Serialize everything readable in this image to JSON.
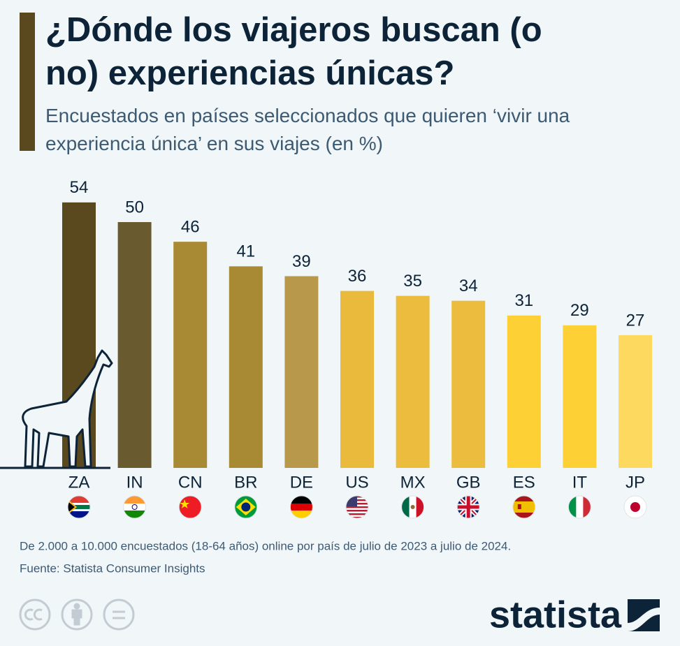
{
  "chart_data": {
    "type": "bar",
    "title": "¿Dónde los viajeros buscan (o no) experiencias únicas?",
    "subtitle": "Encuestados en países seleccionados que quieren ‘vivir una experiencia única’ en sus viajes (en %)",
    "categories": [
      "ZA",
      "IN",
      "CN",
      "BR",
      "DE",
      "US",
      "MX",
      "GB",
      "ES",
      "IT",
      "JP"
    ],
    "values": [
      54,
      50,
      46,
      41,
      39,
      36,
      35,
      34,
      31,
      29,
      27
    ],
    "colors": [
      "#5a491e",
      "#6a5a30",
      "#a88a35",
      "#a88a35",
      "#b8994b",
      "#e9ba3c",
      "#ebbc3e",
      "#ebbc3e",
      "#fdd135",
      "#fdd135",
      "#fdd960"
    ],
    "note": "De 2.000 a 10.000 encuestados (18-64 años) online por país de julio de 2023 a julio de 2024.",
    "source": "Fuente: Statista Consumer Insights"
  },
  "logo": "statista"
}
